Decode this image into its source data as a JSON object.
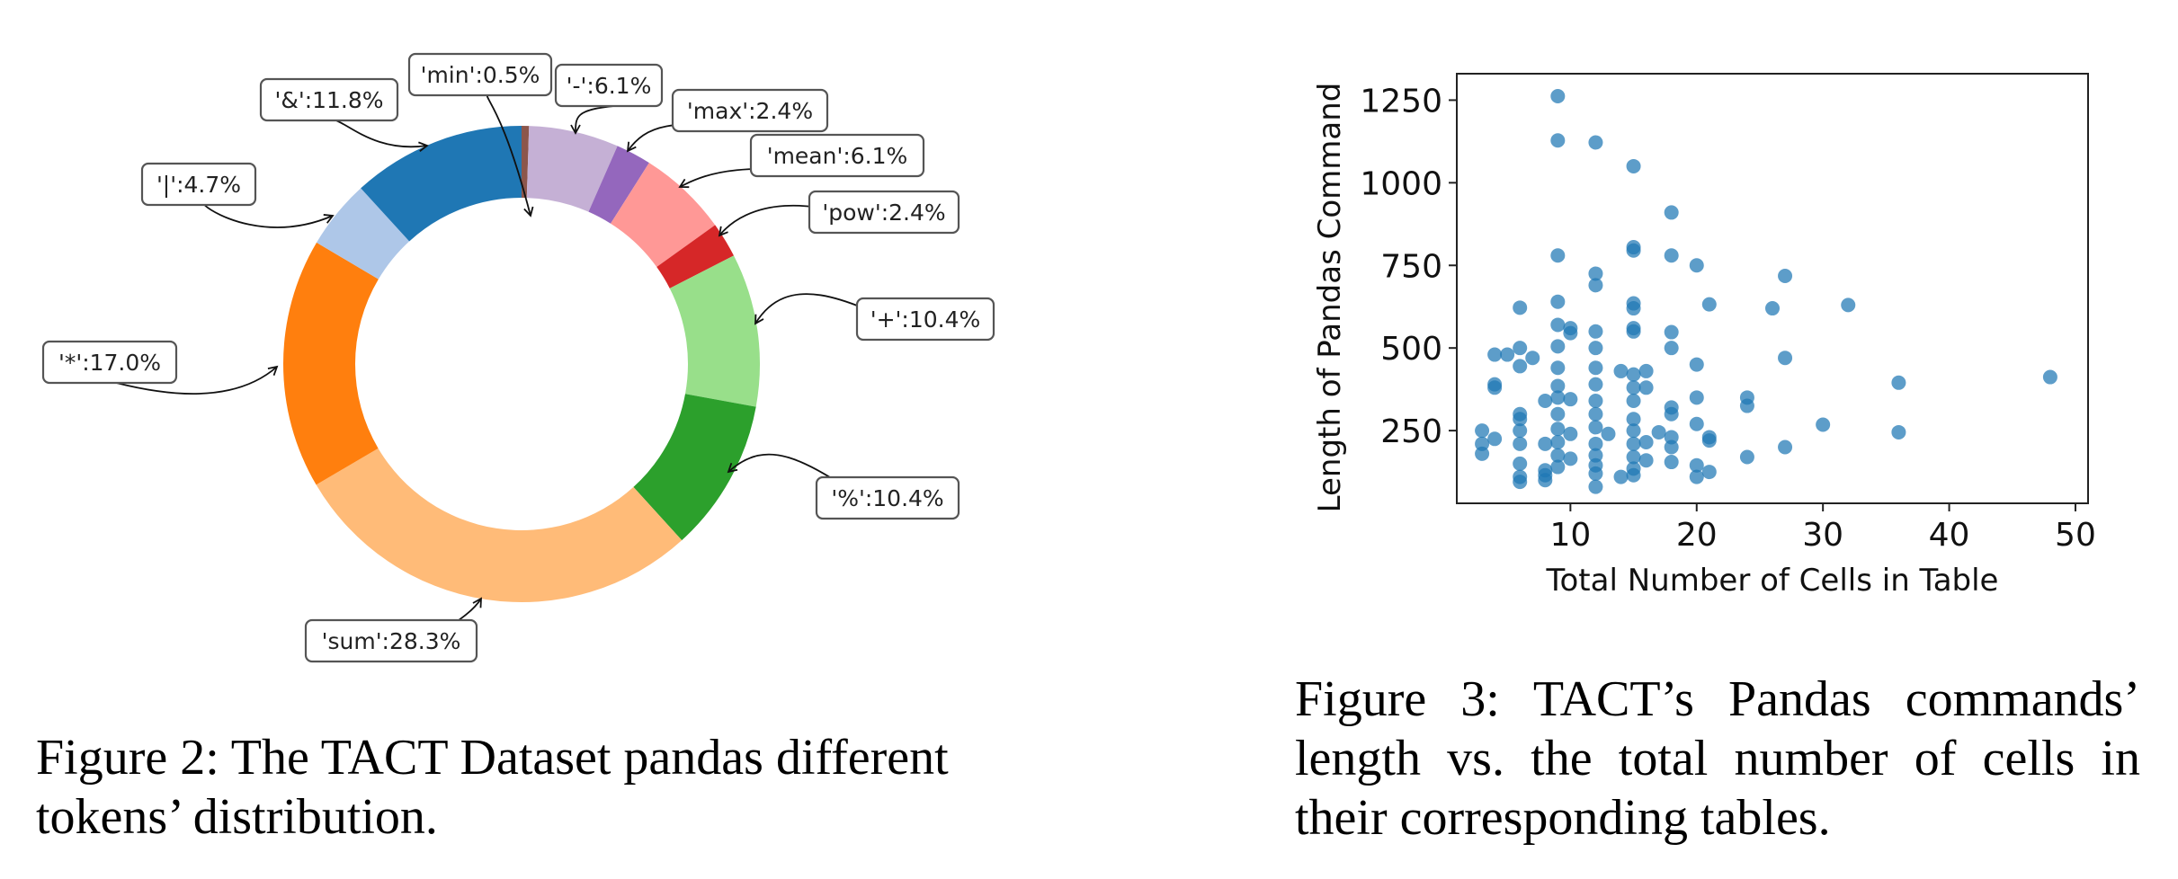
{
  "captions": {
    "fig2": "Figure 2: The TACT Dataset pandas different tokens’ distribution.",
    "fig3": "Figure 3: TACT’s Pandas commands’ length vs. the total number of cells in their corresponding tables."
  },
  "chart_data": [
    {
      "type": "pie",
      "variant": "donut",
      "slices": [
        {
          "label": "'min'",
          "value": 0.5,
          "text": "'min':0.5%",
          "color": "#8c564b"
        },
        {
          "label": "'-'",
          "value": 6.1,
          "text": "'-':6.1%",
          "color": "#c5b0d5"
        },
        {
          "label": "'max'",
          "value": 2.4,
          "text": "'max':2.4%",
          "color": "#9467bd"
        },
        {
          "label": "'mean'",
          "value": 6.1,
          "text": "'mean':6.1%",
          "color": "#ff9896"
        },
        {
          "label": "'pow'",
          "value": 2.4,
          "text": "'pow':2.4%",
          "color": "#d62728"
        },
        {
          "label": "'+'",
          "value": 10.4,
          "text": "'+':10.4%",
          "color": "#98df8a"
        },
        {
          "label": "'%'",
          "value": 10.4,
          "text": "'%':10.4%",
          "color": "#2ca02c"
        },
        {
          "label": "'sum'",
          "value": 28.3,
          "text": "'sum':28.3%",
          "color": "#ffbb78"
        },
        {
          "label": "'*'",
          "value": 17.0,
          "text": "'*':17.0%",
          "color": "#ff7f0e"
        },
        {
          "label": "'|'",
          "value": 4.7,
          "text": "'|':4.7%",
          "color": "#aec7e8"
        },
        {
          "label": "'&'",
          "value": 11.8,
          "text": "'&':11.8%",
          "color": "#1f77b4"
        }
      ],
      "start": "12 o'clock",
      "direction": "clockwise"
    },
    {
      "type": "scatter",
      "xlabel": "Total Number of Cells in Table",
      "ylabel": "Length of Pandas Command",
      "xlim": [
        1,
        51
      ],
      "ylim": [
        30,
        1330
      ],
      "xticks": [
        10,
        20,
        30,
        40,
        50
      ],
      "yticks": [
        250,
        500,
        750,
        1000,
        1250
      ],
      "grid": false,
      "color": "#1f77b4",
      "points": [
        [
          9,
          1262
        ],
        [
          9,
          1128
        ],
        [
          12,
          1122
        ],
        [
          15,
          1050
        ],
        [
          18,
          910
        ],
        [
          15,
          805
        ],
        [
          15,
          795
        ],
        [
          9,
          780
        ],
        [
          18,
          780
        ],
        [
          20,
          750
        ],
        [
          12,
          725
        ],
        [
          27,
          718
        ],
        [
          12,
          690
        ],
        [
          6,
          622
        ],
        [
          9,
          640
        ],
        [
          15,
          635
        ],
        [
          15,
          620
        ],
        [
          21,
          632
        ],
        [
          26,
          620
        ],
        [
          32,
          630
        ],
        [
          9,
          570
        ],
        [
          10,
          560
        ],
        [
          10,
          545
        ],
        [
          12,
          550
        ],
        [
          15,
          560
        ],
        [
          15,
          550
        ],
        [
          18,
          548
        ],
        [
          6,
          500
        ],
        [
          9,
          505
        ],
        [
          12,
          500
        ],
        [
          18,
          500
        ],
        [
          4,
          480
        ],
        [
          5,
          480
        ],
        [
          7,
          470
        ],
        [
          27,
          470
        ],
        [
          6,
          445
        ],
        [
          9,
          440
        ],
        [
          12,
          440
        ],
        [
          14,
          430
        ],
        [
          15,
          420
        ],
        [
          16,
          430
        ],
        [
          20,
          450
        ],
        [
          36,
          395
        ],
        [
          48,
          412
        ],
        [
          4,
          390
        ],
        [
          4,
          380
        ],
        [
          9,
          385
        ],
        [
          12,
          390
        ],
        [
          15,
          380
        ],
        [
          16,
          380
        ],
        [
          8,
          340
        ],
        [
          9,
          350
        ],
        [
          10,
          345
        ],
        [
          12,
          340
        ],
        [
          15,
          340
        ],
        [
          18,
          320
        ],
        [
          20,
          350
        ],
        [
          24,
          350
        ],
        [
          24,
          325
        ],
        [
          6,
          300
        ],
        [
          6,
          285
        ],
        [
          9,
          300
        ],
        [
          12,
          300
        ],
        [
          15,
          285
        ],
        [
          18,
          300
        ],
        [
          20,
          270
        ],
        [
          30,
          268
        ],
        [
          3,
          250
        ],
        [
          6,
          250
        ],
        [
          9,
          255
        ],
        [
          10,
          240
        ],
        [
          12,
          260
        ],
        [
          13,
          240
        ],
        [
          15,
          250
        ],
        [
          17,
          245
        ],
        [
          18,
          230
        ],
        [
          21,
          230
        ],
        [
          36,
          245
        ],
        [
          3,
          210
        ],
        [
          6,
          210
        ],
        [
          9,
          215
        ],
        [
          12,
          210
        ],
        [
          15,
          210
        ],
        [
          16,
          215
        ],
        [
          18,
          200
        ],
        [
          21,
          220
        ],
        [
          27,
          200
        ],
        [
          3,
          180
        ],
        [
          4,
          225
        ],
        [
          8,
          210
        ],
        [
          9,
          175
        ],
        [
          10,
          165
        ],
        [
          12,
          175
        ],
        [
          15,
          170
        ],
        [
          16,
          160
        ],
        [
          18,
          155
        ],
        [
          24,
          170
        ],
        [
          6,
          150
        ],
        [
          8,
          130
        ],
        [
          9,
          140
        ],
        [
          12,
          145
        ],
        [
          15,
          135
        ],
        [
          20,
          145
        ],
        [
          6,
          110
        ],
        [
          8,
          115
        ],
        [
          12,
          120
        ],
        [
          14,
          110
        ],
        [
          15,
          115
        ],
        [
          20,
          110
        ],
        [
          21,
          125
        ],
        [
          6,
          95
        ],
        [
          8,
          100
        ],
        [
          12,
          80
        ]
      ]
    }
  ]
}
